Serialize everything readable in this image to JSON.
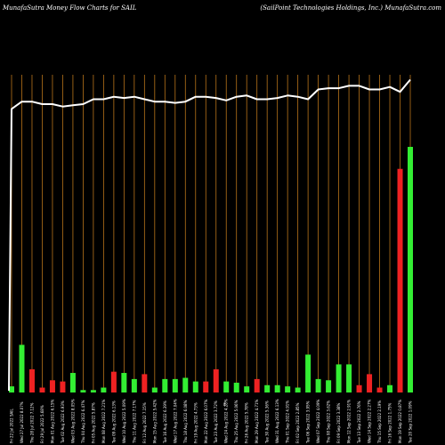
{
  "header": {
    "left_title": "MunafaSutra  Money Flow  Charts for SAIL",
    "right_title": "(SailPoint Technologies Holdings, Inc.) MunafaSutra.com"
  },
  "colors": {
    "background": "#000000",
    "grid": "#b8741a",
    "line": "#ffffff",
    "up": "#33ee33",
    "down": "#ee2222"
  },
  "chart_data": {
    "type": "bar",
    "grid": "vertical",
    "mid_label": "0",
    "categories": [
      "Fri 22 Jul 2022 SAIL",
      "Wed 27 Jul 2022 8.07%",
      "Thu 28 Jul 2022 7.12%",
      "Fri 29 Jul 2022 5.68%",
      "Mon 01 Aug 2022 6.15%",
      "Tue 02 Aug 2022 6.93%",
      "Wed 03 Aug 2022 8.05%",
      "Thu 04 Aug 2022 6.47%",
      "Fri 05 Aug 2022 5.87%",
      "Mon 08 Aug 2022 7.21%",
      "Tue 09 Aug 2022 6.13%",
      "Wed 10 Aug 2022 5.09%",
      "Thu 11 Aug 2022 7.17%",
      "Fri 12 Aug 2022 7.15%",
      "Mon 15 Aug 2022 5.42%",
      "Tue 16 Aug 2022 6.39%",
      "Wed 17 Aug 2022 7.04%",
      "Thu 18 Aug 2022 6.08%",
      "Fri 19 Aug 2022 4.73%",
      "Mon 22 Aug 2022 6.07%",
      "Tue 23 Aug 2022 3.72%",
      "Wed 24 Aug 2022 4.28%",
      "Thu 25 Aug 2022 5.06%",
      "Fri 26 Aug 2022 5.78%",
      "Mon 29 Aug 2022 4.71%",
      "Tue 30 Aug 2022 5.36%",
      "Wed 31 Aug 2022 6.13%",
      "Thu 01 Sep 2022 4.91%",
      "Fri 02 Sep 2022 2.85%",
      "Tue 06 Sep 2022 3.95%",
      "Wed 07 Sep 2022 4.09%",
      "Thu 08 Sep 2022 3.62%",
      "Fri 09 Sep 2022 3.38%",
      "Mon 12 Sep 2022 2.91%",
      "Tue 13 Sep 2022 2.76%",
      "Wed 14 Sep 2022 2.27%",
      "Thu 15 Sep 2022 2.19%",
      "Fri 16 Sep 2022 1.75%",
      "Mon 19 Sep 2022 0.87%",
      "Tue 20 Sep 2022 1.09%"
    ],
    "series": [
      {
        "values": [
          5,
          39,
          19,
          4,
          10,
          9,
          16,
          2,
          2,
          4,
          17,
          16,
          11,
          15,
          4,
          11,
          11,
          12,
          9,
          9,
          19,
          9,
          8,
          5,
          11,
          6,
          6,
          5,
          4,
          31,
          11,
          10,
          23,
          23,
          6,
          15,
          4,
          6,
          183,
          201
        ],
        "colors": [
          "up",
          "up",
          "down",
          "down",
          "down",
          "down",
          "up",
          "up",
          "up",
          "up",
          "down",
          "up",
          "up",
          "down",
          "up",
          "up",
          "up",
          "up",
          "up",
          "down",
          "down",
          "up",
          "up",
          "up",
          "down",
          "up",
          "up",
          "up",
          "up",
          "up",
          "up",
          "up",
          "up",
          "up",
          "down",
          "down",
          "down",
          "up",
          "down",
          "up"
        ]
      },
      {
        "type": "line",
        "values": [
          232,
          238,
          238,
          236,
          236,
          234,
          235,
          236,
          240,
          240,
          242,
          241,
          242,
          240,
          238,
          238,
          237,
          238,
          242,
          242,
          241,
          239,
          242,
          243,
          240,
          240,
          241,
          243,
          242,
          240,
          248,
          249,
          249,
          251,
          251,
          248,
          248,
          250,
          246,
          256
        ]
      }
    ]
  }
}
